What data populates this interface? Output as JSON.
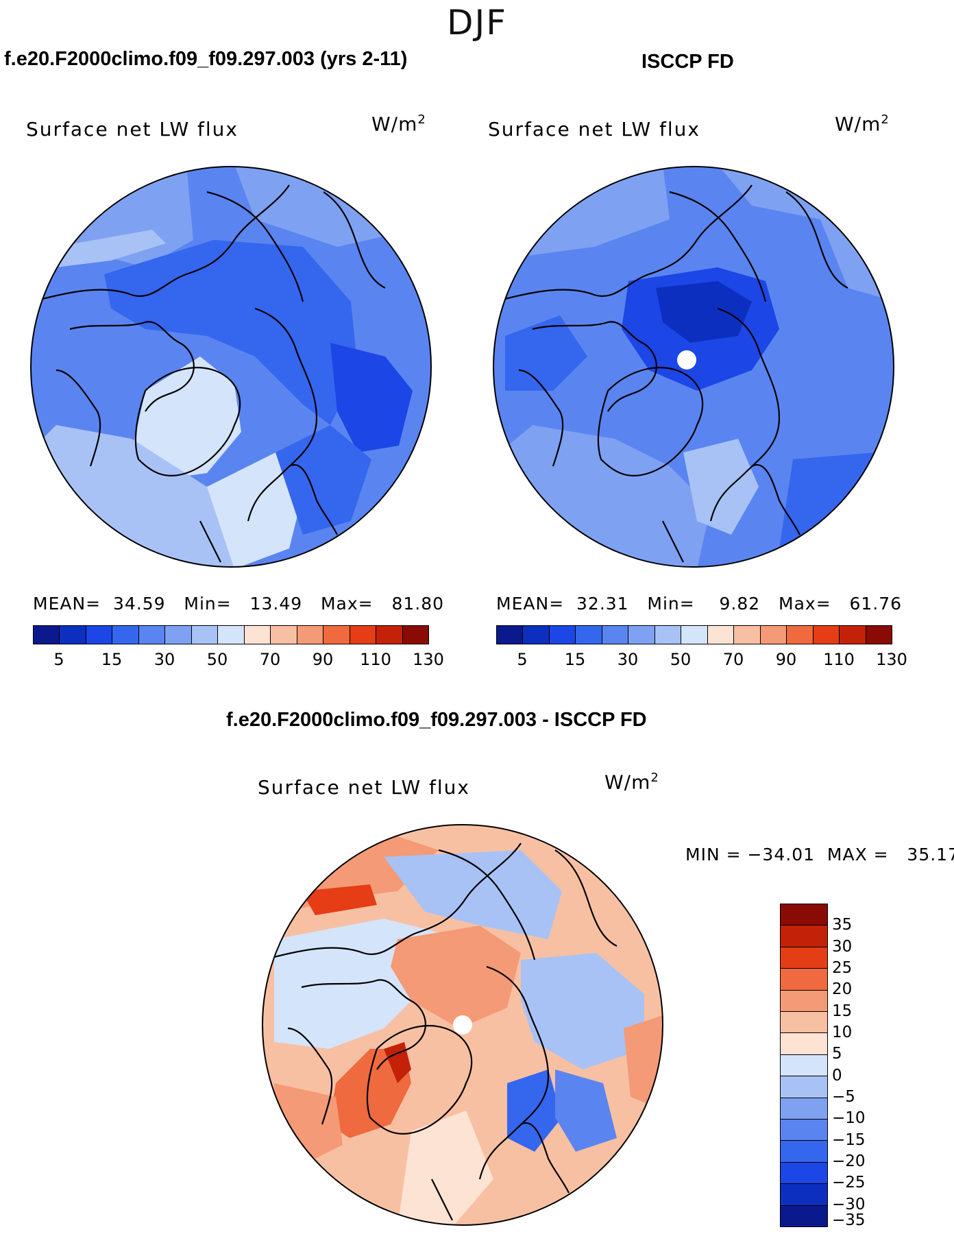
{
  "figure": {
    "season": "DJF",
    "field_name": "Surface net LW flux",
    "units_base": "W/m",
    "units_exp": "2"
  },
  "panels": {
    "model": {
      "title": "f.e20.F2000climo.f09_f09.297.003 (yrs 2-11)",
      "stats_text": "MEAN=  34.59   Min=   13.49   Max=   81.80",
      "mean": 34.59,
      "min": 13.49,
      "max": 81.8
    },
    "obs": {
      "title": "ISCCP FD",
      "stats_text": "MEAN=  32.31   Min=    9.82   Max=   61.76",
      "mean": 32.31,
      "min": 9.82,
      "max": 61.76
    },
    "diff": {
      "title": "f.e20.F2000climo.f09_f09.297.003 - ISCCP FD",
      "stats_text": "MIN = −34.01  MAX =   35.17",
      "min": -34.01,
      "max": 35.17
    }
  },
  "colorbar_top": {
    "colors": [
      "#0a1a8c",
      "#0d2fc0",
      "#1c46e6",
      "#3566ee",
      "#5a85f0",
      "#7ea1f2",
      "#a8c2f6",
      "#d4e4fb",
      "#fde3d3",
      "#f8c0a2",
      "#f49a76",
      "#ef6a3e",
      "#e53d15",
      "#c32208",
      "#8a0a05"
    ],
    "tick_labels": [
      "5",
      "15",
      "30",
      "50",
      "70",
      "90",
      "110",
      "130"
    ]
  },
  "colorbar_diff": {
    "colors": [
      "#8a0a05",
      "#c32208",
      "#e53d15",
      "#ef6a3e",
      "#f49a76",
      "#f8c0a2",
      "#fde3d3",
      "#d4e4fb",
      "#a8c2f6",
      "#7ea1f2",
      "#5a85f0",
      "#3566ee",
      "#1c46e6",
      "#0d2fc0",
      "#0a1a8c"
    ],
    "tick_labels": [
      "35",
      "30",
      "25",
      "20",
      "15",
      "10",
      "5",
      "0",
      "−5",
      "−10",
      "−15",
      "−20",
      "−25",
      "−30",
      "−35"
    ]
  }
}
